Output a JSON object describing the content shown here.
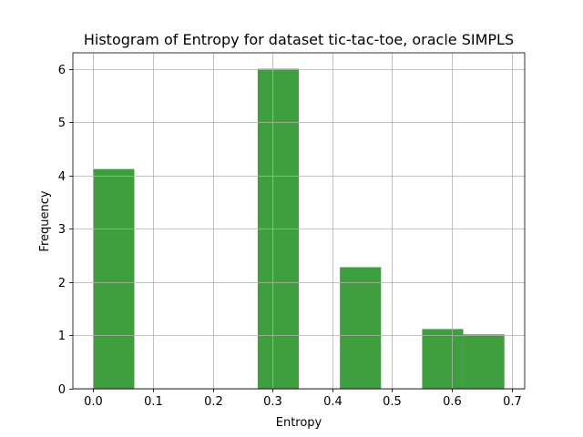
{
  "chart_data": {
    "type": "bar",
    "title": "Histogram of Entropy for dataset tic-tac-toe, oracle SIMPLS",
    "xlabel": "Entropy",
    "ylabel": "Frequency",
    "xlim": [
      -0.034,
      0.722
    ],
    "ylim": [
      0,
      6.3
    ],
    "xticks": [
      "0.0",
      "0.1",
      "0.2",
      "0.3",
      "0.4",
      "0.5",
      "0.6",
      "0.7"
    ],
    "xtick_values": [
      0.0,
      0.1,
      0.2,
      0.3,
      0.4,
      0.5,
      0.6,
      0.7
    ],
    "yticks": [
      "0",
      "1",
      "2",
      "3",
      "4",
      "5",
      "6"
    ],
    "ytick_values": [
      0,
      1,
      2,
      3,
      4,
      5,
      6
    ],
    "grid": true,
    "bar_color": "#3f9f3f",
    "bins": [
      {
        "x0": 0.0,
        "x1": 0.0688,
        "value": 4.12
      },
      {
        "x0": 0.0688,
        "x1": 0.1376,
        "value": 0
      },
      {
        "x0": 0.1376,
        "x1": 0.2064,
        "value": 0
      },
      {
        "x0": 0.2064,
        "x1": 0.2752,
        "value": 0
      },
      {
        "x0": 0.2752,
        "x1": 0.344,
        "value": 6.0
      },
      {
        "x0": 0.344,
        "x1": 0.4128,
        "value": 0
      },
      {
        "x0": 0.4128,
        "x1": 0.4816,
        "value": 2.28
      },
      {
        "x0": 0.4816,
        "x1": 0.5504,
        "value": 0
      },
      {
        "x0": 0.5504,
        "x1": 0.6192,
        "value": 1.12
      },
      {
        "x0": 0.6192,
        "x1": 0.688,
        "value": 1.02
      }
    ]
  }
}
